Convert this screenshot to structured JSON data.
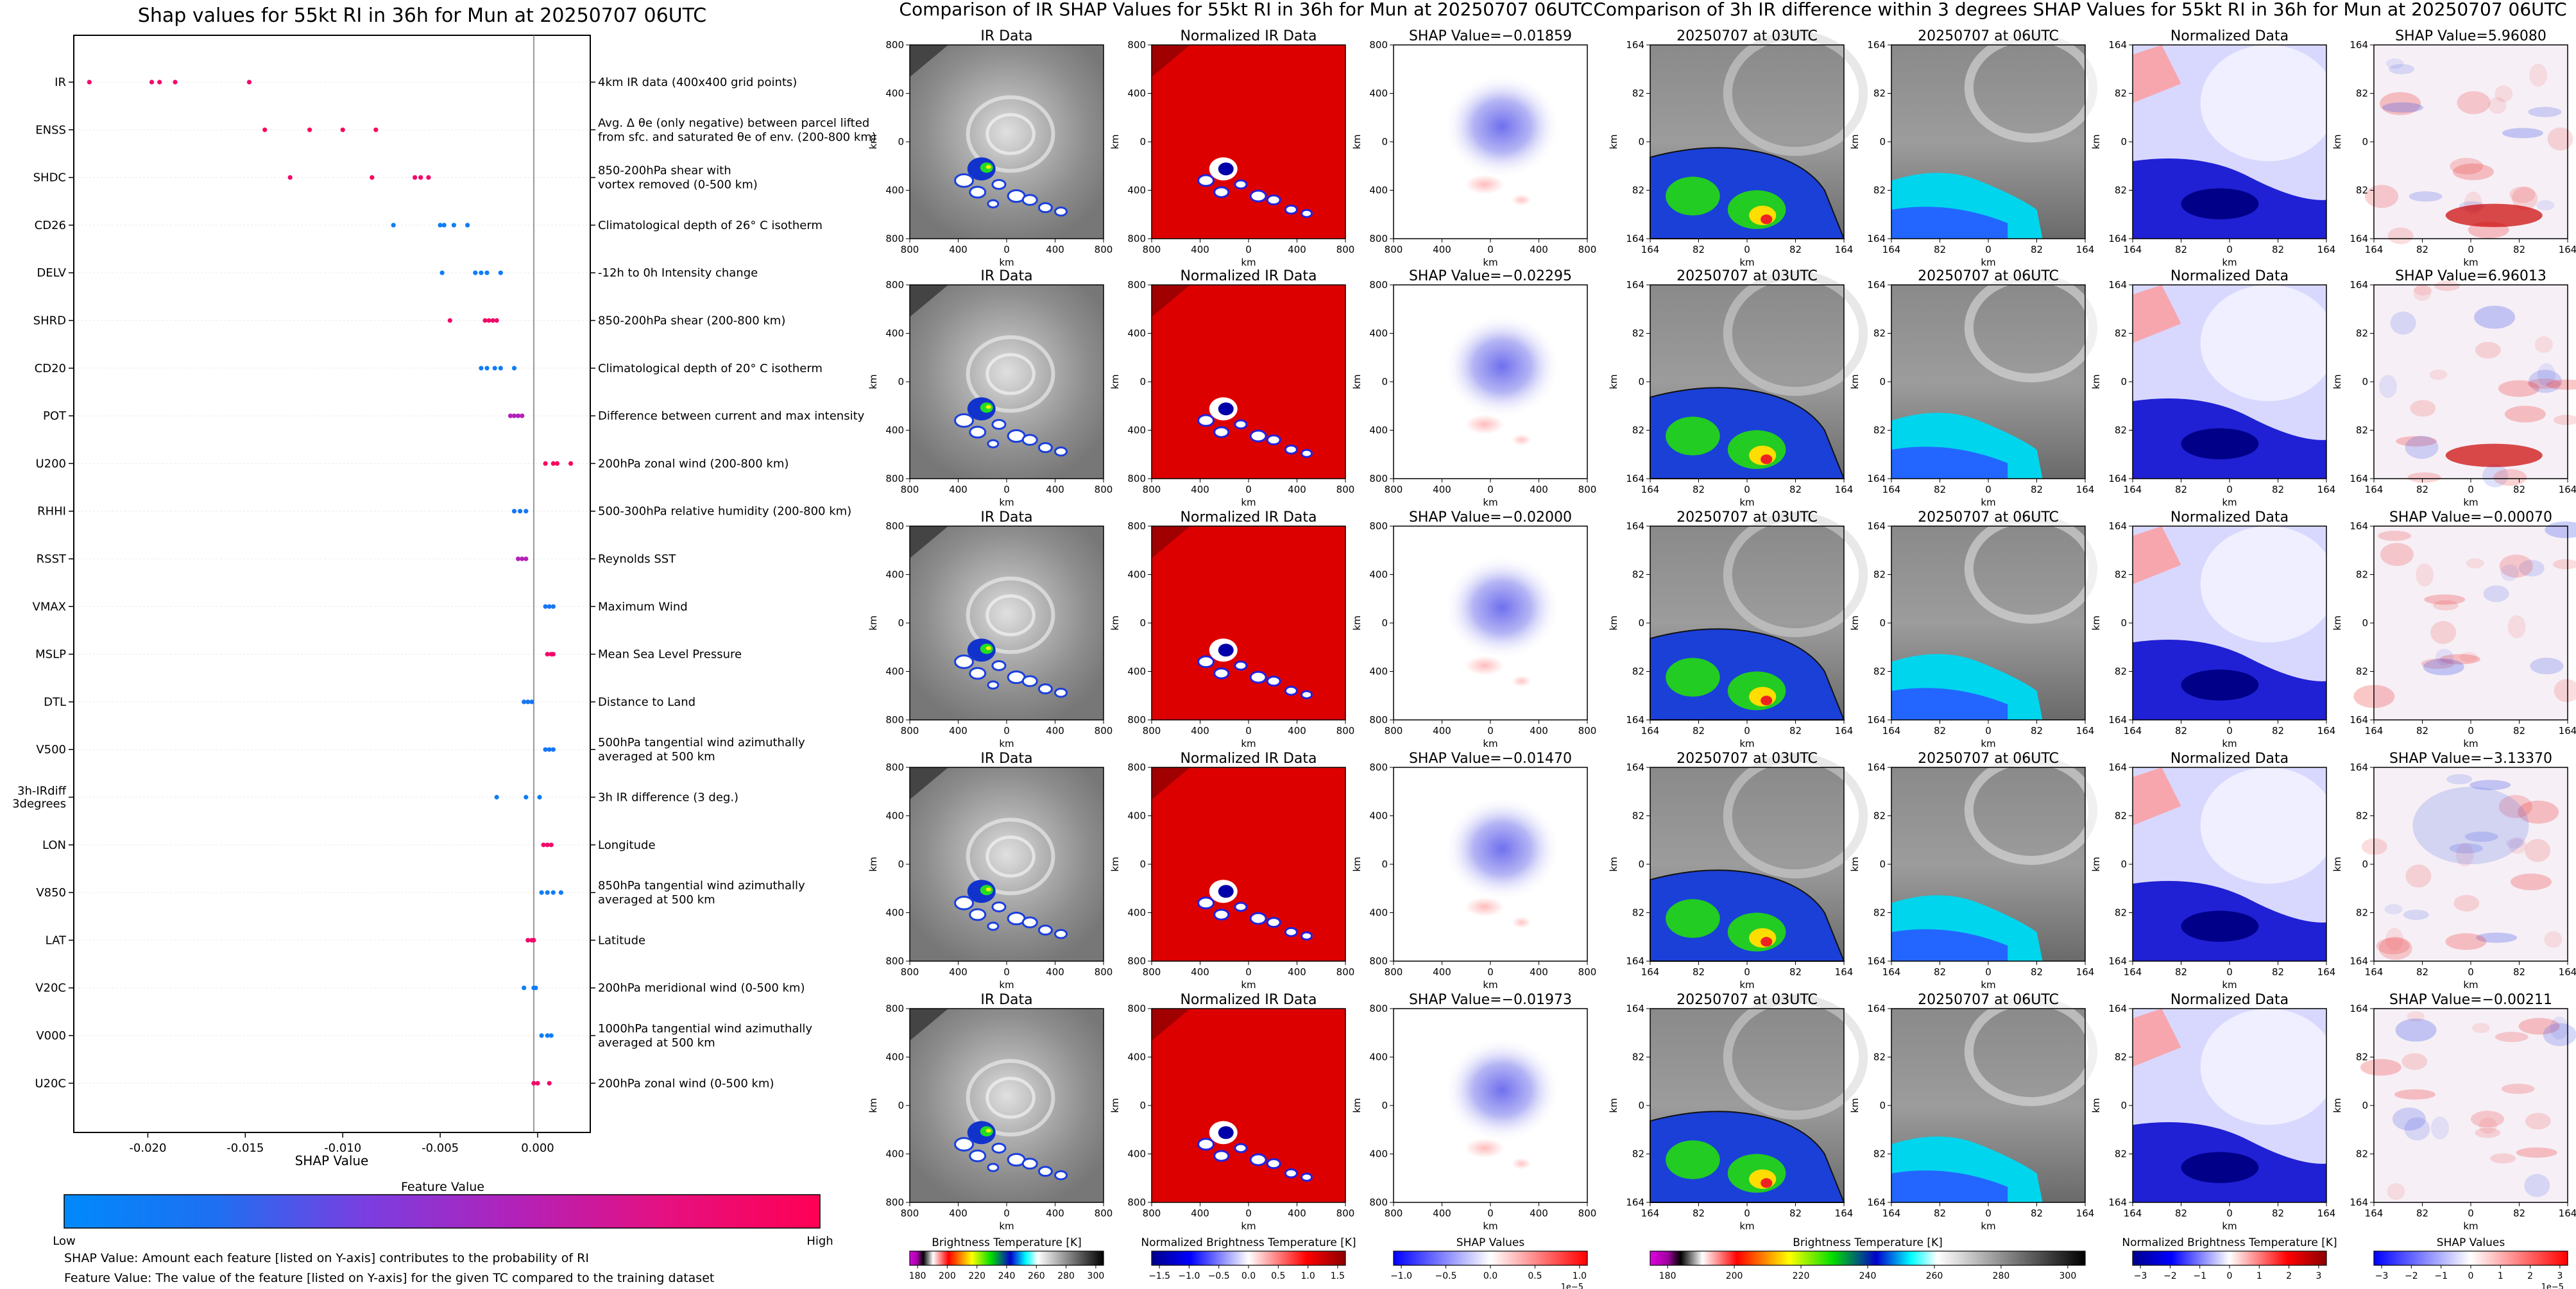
{
  "summary": {
    "title": "Shap values for 55kt RI in 36h for Mun at 20250707 06UTC",
    "xlabel": "SHAP Value",
    "xticks": [
      "-0.020",
      "-0.015",
      "-0.010",
      "-0.005",
      "0.000"
    ],
    "xtick_values": [
      -0.02,
      -0.015,
      -0.01,
      -0.005,
      0.0
    ],
    "colorbar": {
      "title": "Feature Value",
      "low": "Low",
      "high": "High",
      "colors": [
        "#008afb",
        "#1e6ff2",
        "#7b3ee0",
        "#b321b8",
        "#e6107f",
        "#ff0054"
      ]
    },
    "notes": [
      "SHAP Value: Amount each feature [listed on Y-axis] contributes to the probability of RI",
      "Feature Value: The value of the feature [listed on Y-axis] for the given TC compared to the training dataset"
    ]
  },
  "panel_a": {
    "title": "Comparison of IR SHAP Values for 55kt RI in 36h for Mun at 20250707 06UTC",
    "col_titles": [
      "IR Data",
      "Normalized IR Data"
    ],
    "xticks": [
      "800",
      "400",
      "0",
      "400",
      "800"
    ],
    "yticks": [
      "800",
      "400",
      "0",
      "400",
      "800"
    ],
    "axis_label": "km",
    "colorbars": [
      {
        "label": "Brightness Temperature [K]",
        "ticks": [
          "180",
          "200",
          "220",
          "240",
          "260",
          "280",
          "300"
        ]
      },
      {
        "label": "Normalized Brightness Temperature [K]",
        "ticks": [
          "−1.5",
          "−1.0",
          "−0.5",
          "0.0",
          "0.5",
          "1.0",
          "1.5"
        ]
      },
      {
        "label": "SHAP Values",
        "ticks": [
          "−1.0",
          "−0.5",
          "0.0",
          "0.5",
          "1.0"
        ],
        "offset": "1e−5"
      }
    ]
  },
  "panel_b": {
    "title": "Comparison of 3h IR difference within 3 degrees SHAP Values for 55kt RI in 36h for Mun at 20250707 06UTC",
    "col_titles": [
      "20250707 at 03UTC",
      "20250707 at 06UTC",
      "Normalized Data"
    ],
    "xticks": [
      "164",
      "82",
      "0",
      "82",
      "164"
    ],
    "yticks": [
      "164",
      "82",
      "0",
      "82",
      "164"
    ],
    "axis_label": "km",
    "colorbars": [
      {
        "label": "Brightness Temperature [K]",
        "ticks": [
          "180",
          "200",
          "220",
          "240",
          "260",
          "280",
          "300"
        ]
      },
      {
        "label": "Normalized Brightness Temperature [K]",
        "ticks": [
          "−3",
          "−2",
          "−1",
          "0",
          "1",
          "2",
          "3"
        ]
      },
      {
        "label": "SHAP Values",
        "ticks": [
          "−3",
          "−2",
          "−1",
          "0",
          "1",
          "2",
          "3"
        ],
        "offset": "1e−5"
      }
    ]
  },
  "chart_data": [
    {
      "type": "scatter",
      "title": "Shap values for 55kt RI in 36h for Mun at 20250707 06UTC",
      "xlabel": "SHAP Value",
      "xlim": [
        -0.0238,
        0.0027
      ],
      "legend": "bottom colorbar (Feature Value: Low to High)",
      "features": [
        {
          "name": "IR",
          "desc": [
            "4km IR data (400x400 grid points)"
          ],
          "points": [
            [
              -0.023,
              0.9
            ],
            [
              -0.0198,
              0.9
            ],
            [
              -0.0194,
              0.9
            ],
            [
              -0.0186,
              0.9
            ],
            [
              -0.0148,
              0.9
            ]
          ]
        },
        {
          "name": "ENSS",
          "desc": [
            "Avg. Δ θe (only negative) between parcel lifted",
            "from sfc. and saturated θe of env. (200-800 km)"
          ],
          "points": [
            [
              -0.014,
              0.95
            ],
            [
              -0.0117,
              0.95
            ],
            [
              -0.01,
              0.95
            ],
            [
              -0.0083,
              0.95
            ]
          ]
        },
        {
          "name": "SHDC",
          "desc": [
            "850-200hPa shear with",
            "vortex removed (0-500 km)"
          ],
          "points": [
            [
              -0.0127,
              0.9
            ],
            [
              -0.0085,
              0.95
            ],
            [
              -0.0063,
              0.9
            ],
            [
              -0.006,
              0.9
            ],
            [
              -0.0056,
              0.9
            ]
          ]
        },
        {
          "name": "CD26",
          "desc": [
            "Climatological depth of 26° C isotherm"
          ],
          "points": [
            [
              -0.0074,
              0.1
            ],
            [
              -0.005,
              0.1
            ],
            [
              -0.0048,
              0.1
            ],
            [
              -0.0043,
              0.1
            ],
            [
              -0.0036,
              0.1
            ]
          ]
        },
        {
          "name": "DELV",
          "desc": [
            "-12h to 0h Intensity change"
          ],
          "points": [
            [
              -0.0049,
              0.1
            ],
            [
              -0.0032,
              0.1
            ],
            [
              -0.0029,
              0.1
            ],
            [
              -0.0026,
              0.1
            ],
            [
              -0.0019,
              0.1
            ]
          ]
        },
        {
          "name": "SHRD",
          "desc": [
            "850-200hPa shear (200-800 km)"
          ],
          "points": [
            [
              -0.0045,
              0.9
            ],
            [
              -0.0027,
              0.9
            ],
            [
              -0.0025,
              0.9
            ],
            [
              -0.0023,
              0.9
            ],
            [
              -0.0021,
              0.9
            ]
          ]
        },
        {
          "name": "CD20",
          "desc": [
            "Climatological depth of 20° C isotherm"
          ],
          "points": [
            [
              -0.0029,
              0.1
            ],
            [
              -0.0026,
              0.1
            ],
            [
              -0.0022,
              0.1
            ],
            [
              -0.0019,
              0.1
            ],
            [
              -0.0012,
              0.1
            ]
          ]
        },
        {
          "name": "POT",
          "desc": [
            "Difference between current and max intensity"
          ],
          "points": [
            [
              -0.0014,
              0.6
            ],
            [
              -0.0012,
              0.6
            ],
            [
              -0.001,
              0.6
            ],
            [
              -0.0008,
              0.6
            ]
          ]
        },
        {
          "name": "U200",
          "desc": [
            "200hPa zonal wind (200-800 km)"
          ],
          "points": [
            [
              0.0004,
              0.95
            ],
            [
              0.0008,
              0.95
            ],
            [
              0.001,
              0.95
            ],
            [
              0.0017,
              0.95
            ]
          ]
        },
        {
          "name": "RHHI",
          "desc": [
            "500-300hPa relative humidity (200-800 km)"
          ],
          "points": [
            [
              -0.0012,
              0.15
            ],
            [
              -0.0009,
              0.15
            ],
            [
              -0.0006,
              0.15
            ]
          ]
        },
        {
          "name": "RSST",
          "desc": [
            "Reynolds SST"
          ],
          "points": [
            [
              -0.001,
              0.6
            ],
            [
              -0.0008,
              0.6
            ],
            [
              -0.0006,
              0.6
            ]
          ]
        },
        {
          "name": "VMAX",
          "desc": [
            "Maximum Wind"
          ],
          "points": [
            [
              0.0004,
              0.15
            ],
            [
              0.0006,
              0.15
            ],
            [
              0.0008,
              0.15
            ]
          ]
        },
        {
          "name": "MSLP",
          "desc": [
            "Mean Sea Level Pressure"
          ],
          "points": [
            [
              0.0005,
              0.9
            ],
            [
              0.0007,
              0.9
            ],
            [
              0.0008,
              0.9
            ]
          ]
        },
        {
          "name": "DTL",
          "desc": [
            "Distance to Land"
          ],
          "points": [
            [
              -0.0007,
              0.15
            ],
            [
              -0.0005,
              0.15
            ],
            [
              -0.0003,
              0.15
            ]
          ]
        },
        {
          "name": "V500",
          "desc": [
            "500hPa tangential wind azimuthally",
            "averaged at 500 km"
          ],
          "points": [
            [
              0.0004,
              0.15
            ],
            [
              0.0006,
              0.15
            ],
            [
              0.0008,
              0.15
            ]
          ]
        },
        {
          "name": "3h-IRdiff 3degrees",
          "desc": [
            "3h IR difference (3 deg.)"
          ],
          "points": [
            [
              -0.0021,
              0.1
            ],
            [
              -0.0006,
              0.1
            ],
            [
              0.0001,
              0.1
            ]
          ]
        },
        {
          "name": "LON",
          "desc": [
            "Longitude"
          ],
          "points": [
            [
              0.0003,
              0.9
            ],
            [
              0.0005,
              0.9
            ],
            [
              0.0007,
              0.9
            ]
          ]
        },
        {
          "name": "V850",
          "desc": [
            "850hPa tangential wind azimuthally",
            "averaged at 500 km"
          ],
          "points": [
            [
              0.0002,
              0.1
            ],
            [
              0.0005,
              0.1
            ],
            [
              0.0008,
              0.1
            ],
            [
              0.0012,
              0.1
            ]
          ]
        },
        {
          "name": "LAT",
          "desc": [
            "Latitude"
          ],
          "points": [
            [
              -0.0005,
              0.9
            ],
            [
              -0.0003,
              0.9
            ],
            [
              -0.0002,
              0.9
            ]
          ]
        },
        {
          "name": "V20C",
          "desc": [
            "200hPa meridional wind (0-500 km)"
          ],
          "points": [
            [
              -0.0007,
              0.1
            ],
            [
              -0.0002,
              0.1
            ],
            [
              -0.0001,
              0.1
            ]
          ]
        },
        {
          "name": "V000",
          "desc": [
            "1000hPa tangential wind azimuthally",
            "averaged at 500 km"
          ],
          "points": [
            [
              0.0002,
              0.1
            ],
            [
              0.0005,
              0.1
            ],
            [
              0.0007,
              0.1
            ]
          ]
        },
        {
          "name": "U20C",
          "desc": [
            "200hPa zonal wind (0-500 km)"
          ],
          "points": [
            [
              -0.0002,
              0.9
            ],
            [
              0.0,
              0.9
            ],
            [
              0.0006,
              0.9
            ]
          ]
        }
      ]
    },
    {
      "type": "heatmap",
      "title": "Comparison of IR SHAP Values for 55kt RI in 36h for Mun at 20250707 06UTC",
      "xlim": [
        -800,
        800
      ],
      "ylim": [
        -800,
        800
      ],
      "xlabel": "km",
      "ylabel": "km",
      "shap_values": [
        "−0.01859",
        "−0.02295",
        "−0.02000",
        "−0.01470",
        "−0.01973"
      ],
      "shap_prefix": "SHAP Value="
    },
    {
      "type": "heatmap",
      "title": "Comparison of 3h IR difference within 3 degrees SHAP Values for 55kt RI in 36h for Mun at 20250707 06UTC",
      "xlim": [
        -164,
        164
      ],
      "ylim": [
        -164,
        164
      ],
      "xlabel": "km",
      "ylabel": "km",
      "shap_values": [
        "5.96080",
        "6.96013",
        "−0.00070",
        "−3.13370",
        "−0.00211"
      ],
      "shap_prefix": "SHAP Value="
    }
  ]
}
